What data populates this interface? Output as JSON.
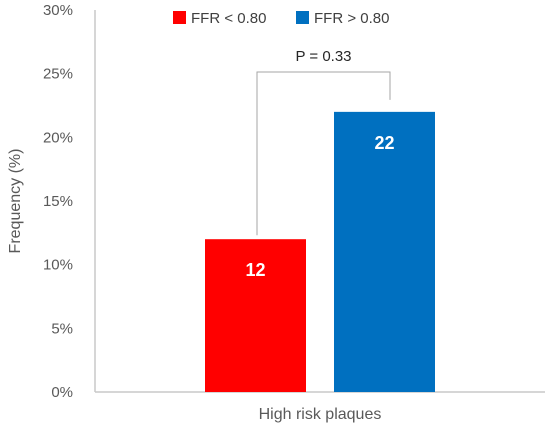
{
  "chart_data": {
    "type": "bar",
    "categories": [
      "High risk plaques"
    ],
    "series": [
      {
        "name": "FFR < 0.80",
        "values": [
          12
        ],
        "color": "#ff0000"
      },
      {
        "name": "FFR > 0.80",
        "values": [
          22
        ],
        "color": "#0070c0"
      }
    ],
    "data_labels": [
      "12",
      "22"
    ],
    "ylabel": "Frequency (%)",
    "xlabel": "",
    "ylim": [
      0,
      30
    ],
    "yticks": [
      0,
      5,
      10,
      15,
      20,
      25,
      30
    ],
    "ytick_labels": [
      "0%",
      "5%",
      "10%",
      "15%",
      "20%",
      "25%",
      "30%"
    ],
    "grid": false,
    "legend": "top",
    "annotation": "P = 0.33"
  }
}
